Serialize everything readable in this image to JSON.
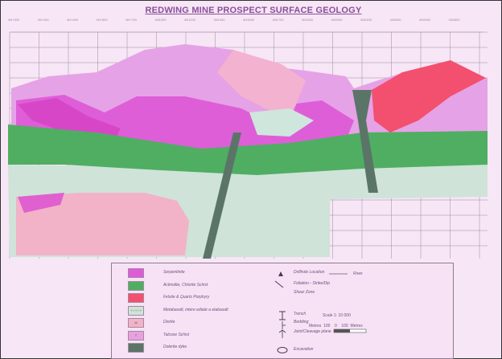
{
  "title": "REDWING MINE PROSPECT SURFACE GEOLOGY",
  "grid_labels": [
    "4N+300",
    "4N+200",
    "4N+400",
    "4N+600",
    "4N+700",
    "4N1000",
    "4N1200",
    "4N1400",
    "4N1600",
    "4N1700",
    "4N1800",
    "4N2000",
    "4N2400",
    "4N2500",
    "4N2600",
    "4N2800"
  ],
  "legend": {
    "units": [
      {
        "label": "Serpentinite",
        "color": "#e05ad8",
        "code": ""
      },
      {
        "label": "Actinolite, Chlorite Schist",
        "color": "#4fae62",
        "code": ""
      },
      {
        "label": "Felsite & Quartz Porphyry",
        "color": "#f2506e",
        "code": ""
      },
      {
        "label": "Metabasalt, intere ediate a etabasalt",
        "color": "#cfe3d8",
        "code": "+ \\ + \\ +"
      },
      {
        "label": "Diorite",
        "color": "#f2b2c8",
        "code": "ф"
      },
      {
        "label": "Talcose Schist",
        "color": "#e8a0e0",
        "code": "T"
      },
      {
        "label": "Dolerite dyke",
        "color": "#5a7568",
        "code": ""
      }
    ],
    "symbols": [
      {
        "label": "Drillhole Location",
        "icon": "triangle-icon"
      },
      {
        "label": "Foliation - Strike/Dip",
        "icon": "foliation-icon"
      },
      {
        "label": "Shear Zone",
        "icon": "shear-zone-icon"
      },
      {
        "label": "Trench",
        "icon": "trench-icon"
      },
      {
        "label": "Bedding",
        "icon": "bedding-icon"
      },
      {
        "label": "Joint/Cleavage plane",
        "icon": "joint-icon"
      },
      {
        "label": "Excavation",
        "icon": "excavation-icon"
      }
    ],
    "river_label": "River",
    "scale_text": "Scale 1: 10 000",
    "scale_bar": {
      "left_unit": "Metres",
      "v1": "100",
      "v2": "0",
      "v3": "100",
      "right_unit": "Metres"
    }
  }
}
